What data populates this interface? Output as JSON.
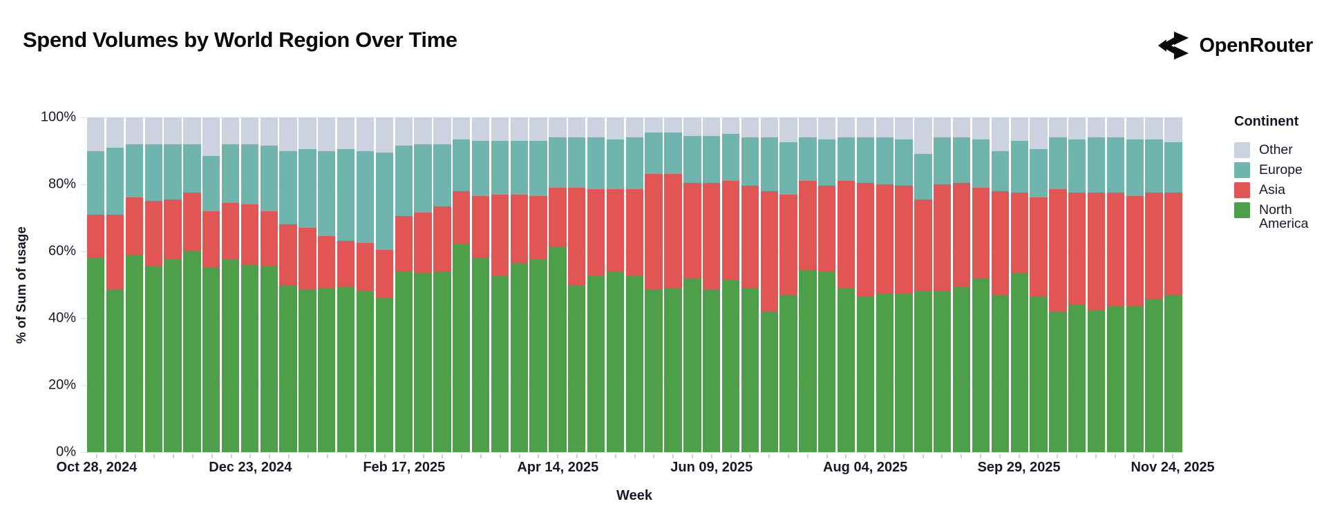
{
  "header": {
    "title": "Spend Volumes by World Region Over Time",
    "brand": "OpenRouter"
  },
  "chart_data": {
    "type": "bar",
    "stacked": true,
    "title": "Spend Volumes by World Region Over Time",
    "xlabel": "Week",
    "ylabel": "% of Sum of usage",
    "ylim": [
      0,
      100
    ],
    "grid": true,
    "y_ticks_pct": [
      0,
      20,
      40,
      60,
      80,
      100
    ],
    "y_tick_labels": [
      "0%",
      "20%",
      "40%",
      "60%",
      "80%",
      "100%"
    ],
    "x_tick_every": 8,
    "x_tick_labels": [
      "Oct 28, 2024",
      "Dec 23, 2024",
      "Feb 17, 2025",
      "Apr 14, 2025",
      "Jun 09, 2025",
      "Aug 04, 2025",
      "Sep 29, 2025",
      "Nov 24, 2025"
    ],
    "categories": [
      "Oct 28, 2024",
      "Nov 04, 2024",
      "Nov 11, 2024",
      "Nov 18, 2024",
      "Nov 25, 2024",
      "Dec 02, 2024",
      "Dec 09, 2024",
      "Dec 16, 2024",
      "Dec 23, 2024",
      "Dec 30, 2024",
      "Jan 06, 2025",
      "Jan 13, 2025",
      "Jan 20, 2025",
      "Jan 27, 2025",
      "Feb 03, 2025",
      "Feb 10, 2025",
      "Feb 17, 2025",
      "Feb 24, 2025",
      "Mar 03, 2025",
      "Mar 10, 2025",
      "Mar 17, 2025",
      "Mar 24, 2025",
      "Mar 31, 2025",
      "Apr 07, 2025",
      "Apr 14, 2025",
      "Apr 21, 2025",
      "Apr 28, 2025",
      "May 05, 2025",
      "May 12, 2025",
      "May 19, 2025",
      "May 26, 2025",
      "Jun 02, 2025",
      "Jun 09, 2025",
      "Jun 16, 2025",
      "Jun 23, 2025",
      "Jun 30, 2025",
      "Jul 07, 2025",
      "Jul 14, 2025",
      "Jul 21, 2025",
      "Jul 28, 2025",
      "Aug 04, 2025",
      "Aug 11, 2025",
      "Aug 18, 2025",
      "Aug 25, 2025",
      "Sep 01, 2025",
      "Sep 08, 2025",
      "Sep 15, 2025",
      "Sep 22, 2025",
      "Sep 29, 2025",
      "Oct 06, 2025",
      "Oct 13, 2025",
      "Oct 20, 2025",
      "Oct 27, 2025",
      "Nov 03, 2025",
      "Nov 10, 2025",
      "Nov 17, 2025",
      "Nov 24, 2025"
    ],
    "series": [
      {
        "name": "North America",
        "color": "#4d9f4a",
        "values": [
          58,
          48.5,
          59,
          55.5,
          57.5,
          60,
          55,
          57.5,
          56,
          55.5,
          50,
          48.5,
          49,
          49.5,
          48,
          46,
          54,
          53.5,
          54,
          62,
          58,
          52.5,
          56.5,
          57.5,
          61.5,
          50,
          52.5,
          54,
          52.5,
          48.5,
          49,
          52,
          48.5,
          51.5,
          49,
          42,
          47,
          54.5,
          54,
          49,
          46.5,
          47.5,
          47.5,
          48,
          48,
          49.5,
          52,
          47,
          53.5,
          46.5,
          42,
          44,
          42.5,
          43.5,
          43.5,
          45.5,
          47
        ]
      },
      {
        "name": "Asia",
        "color": "#e15555",
        "values": [
          13,
          22.5,
          17,
          19.5,
          18,
          17.5,
          17,
          17,
          18,
          16.5,
          18,
          18.5,
          15.5,
          13.5,
          14.5,
          14.5,
          16.5,
          18,
          19.5,
          16,
          18.5,
          24.5,
          20.5,
          19,
          17.5,
          29,
          26,
          24.5,
          26,
          34.5,
          34,
          28.5,
          32,
          29.5,
          30.5,
          36,
          30,
          26.5,
          25.5,
          32,
          34,
          32.5,
          32,
          27.5,
          32,
          31,
          27,
          31,
          24,
          29.5,
          36.5,
          33.5,
          35,
          34,
          33,
          32,
          30.5
        ]
      },
      {
        "name": "Europe",
        "color": "#6fb4ad",
        "values": [
          19,
          20,
          16,
          17,
          16.5,
          14.5,
          16.5,
          17.5,
          18,
          19.5,
          22,
          23.5,
          25.5,
          27.5,
          27.5,
          29,
          21,
          20.5,
          18.5,
          15.5,
          16.5,
          16,
          16,
          16.5,
          15,
          15,
          15.5,
          15,
          15.5,
          12.5,
          12.5,
          14,
          14,
          14,
          14.5,
          16,
          15.5,
          13,
          14,
          13,
          13.5,
          14,
          14,
          13.5,
          14,
          13.5,
          14.5,
          12,
          15.5,
          14.5,
          15.5,
          16,
          16.5,
          16.5,
          17,
          16,
          15
        ]
      },
      {
        "name": "Other",
        "color": "#cdd2e0",
        "values": [
          10,
          9,
          8,
          8,
          8,
          8,
          11.5,
          8,
          8,
          8.5,
          10,
          9.5,
          10,
          9.5,
          10,
          10.5,
          8.5,
          8,
          8,
          6.5,
          7,
          7,
          7,
          7,
          6,
          6,
          6,
          6.5,
          6,
          4.5,
          4.5,
          5.5,
          5.5,
          5,
          6,
          6,
          7.5,
          6,
          6.5,
          6,
          6,
          6,
          6.5,
          11,
          6,
          6,
          6.5,
          10,
          7,
          9.5,
          6,
          6.5,
          6,
          6,
          6.5,
          6.5,
          7.5
        ]
      }
    ],
    "legend": {
      "title": "Continent",
      "position": "right",
      "items": [
        {
          "label": "Other",
          "color": "#cdd2e0"
        },
        {
          "label": "Europe",
          "color": "#6fb4ad"
        },
        {
          "label": "Asia",
          "color": "#e15555"
        },
        {
          "label": "North America",
          "color": "#4d9f4a"
        }
      ]
    }
  }
}
